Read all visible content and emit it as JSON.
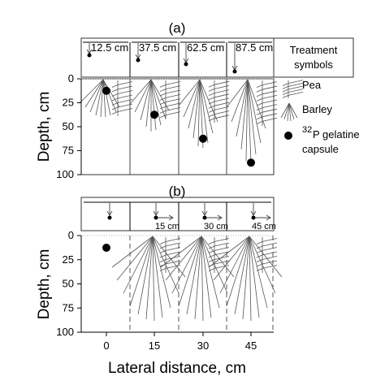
{
  "panel_a": {
    "label": "(a)",
    "distances": [
      "12.5 cm",
      "37.5 cm",
      "62.5 cm",
      "87.5 cm"
    ],
    "capsule_depths_cm": [
      12.5,
      37.5,
      62.5,
      87.5
    ]
  },
  "panel_b": {
    "label": "(b)",
    "distances": [
      "15 cm",
      "30 cm",
      "45 cm"
    ],
    "capsule_lateral_cm": [
      0,
      15,
      30,
      45
    ],
    "capsule_depth_cm": 12.5
  },
  "legend": {
    "title_line1": "Treatment",
    "title_line2": "symbols",
    "pea": "Pea",
    "barley": "Barley",
    "capsule_sup": "32",
    "capsule_line1": "P gelatine",
    "capsule_line2": "capsule"
  },
  "y_axis": {
    "title": "Depth, cm",
    "ticks": [
      "0",
      "25",
      "50",
      "75",
      "100"
    ]
  },
  "x_axis": {
    "title": "Lateral distance, cm",
    "ticks": [
      "0",
      "15",
      "30",
      "45"
    ]
  },
  "icons": {
    "pea_root": "pea-root-icon",
    "barley_root": "barley-root-icon",
    "capsule": "capsule-dot-icon",
    "arrow": "down-arrow-icon"
  }
}
